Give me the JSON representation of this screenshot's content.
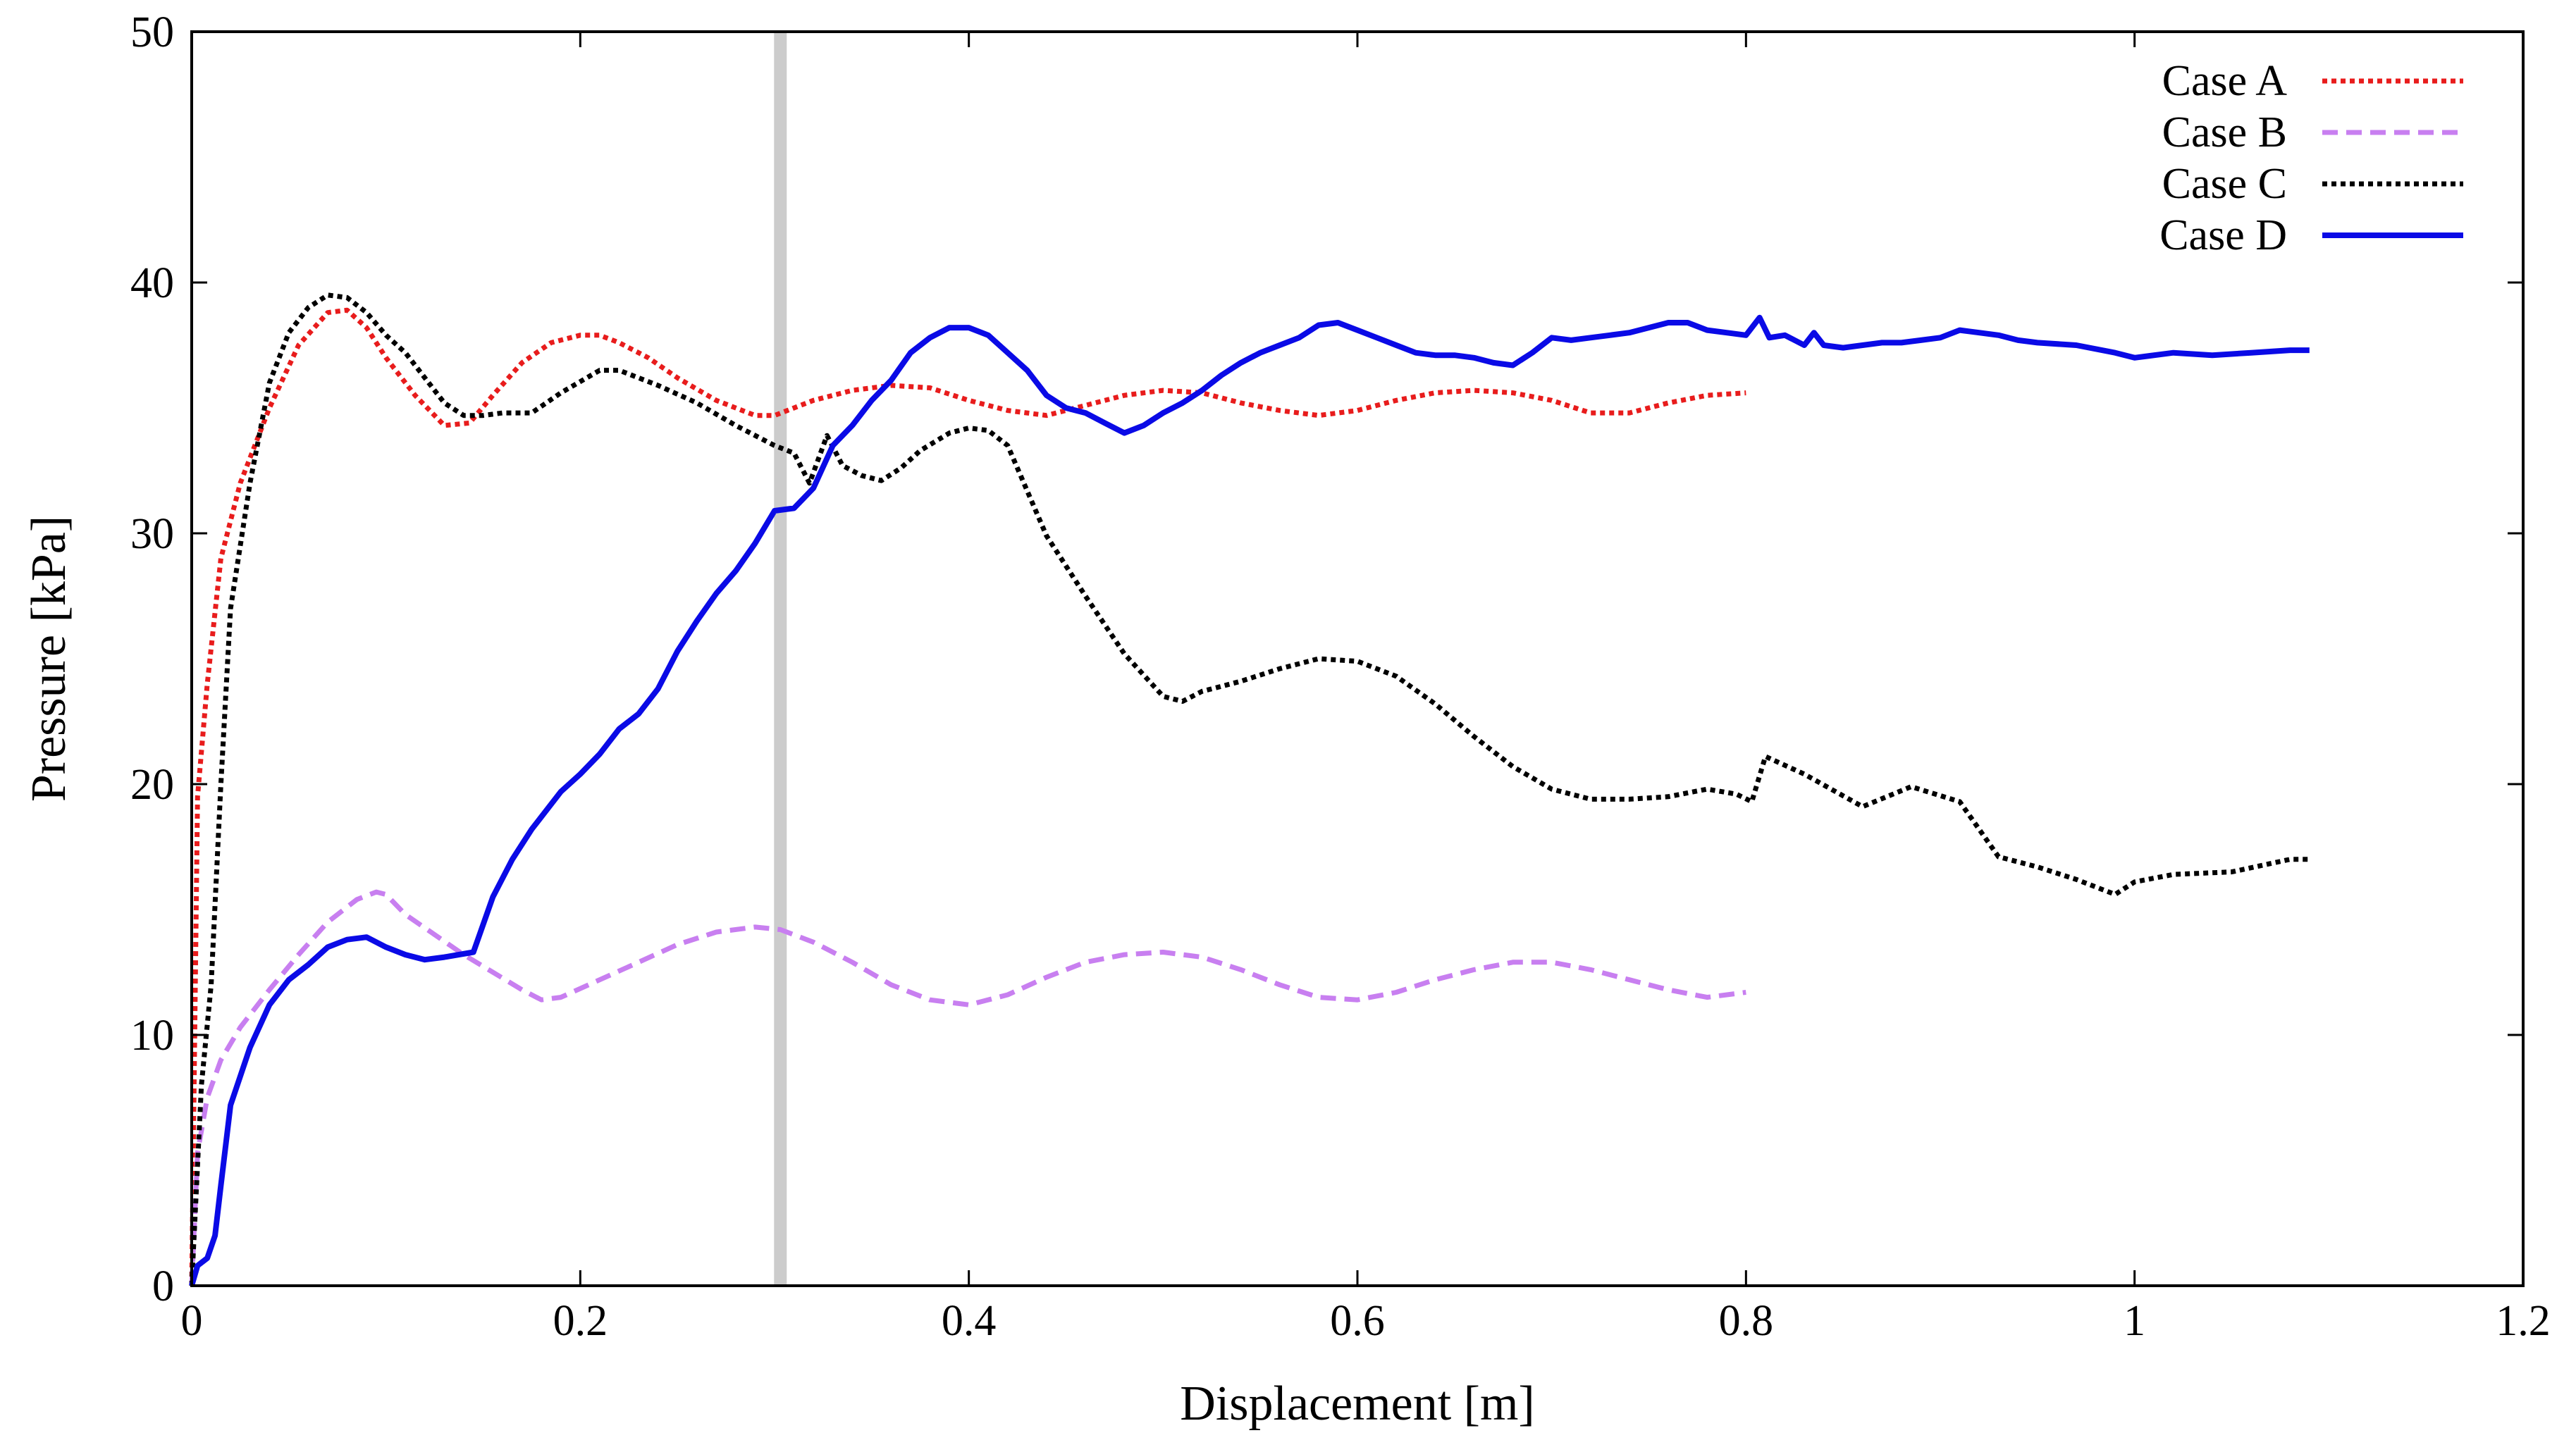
{
  "chart_data": {
    "type": "line",
    "title": "",
    "xlabel": "Displacement [m]",
    "ylabel": "Pressure [kPa]",
    "xlim": [
      0,
      1.2
    ],
    "ylim": [
      0,
      50
    ],
    "xticks": [
      0,
      0.2,
      0.4,
      0.6,
      0.8,
      1,
      1.2
    ],
    "xtick_labels": [
      "0",
      "0.2",
      "0.4",
      "0.6",
      "0.8",
      "1",
      "1.2"
    ],
    "yticks": [
      0,
      10,
      20,
      30,
      40,
      50
    ],
    "ytick_labels": [
      "0",
      "10",
      "20",
      "30",
      "40",
      "50"
    ],
    "grid": false,
    "legend_position": "top-right",
    "reference_line": {
      "x": 0.303,
      "color": "#cccccc"
    },
    "series": [
      {
        "name": "Case A",
        "color": "#e81c1c",
        "dash": "dotted",
        "x": [
          0,
          0.003,
          0.008,
          0.015,
          0.025,
          0.04,
          0.055,
          0.07,
          0.08,
          0.09,
          0.1,
          0.115,
          0.13,
          0.143,
          0.155,
          0.17,
          0.185,
          0.2,
          0.21,
          0.22,
          0.235,
          0.25,
          0.27,
          0.29,
          0.3,
          0.32,
          0.34,
          0.36,
          0.38,
          0.4,
          0.42,
          0.44,
          0.46,
          0.48,
          0.5,
          0.52,
          0.54,
          0.56,
          0.58,
          0.6,
          0.62,
          0.64,
          0.66,
          0.68,
          0.7,
          0.72,
          0.74,
          0.76,
          0.78,
          0.8
        ],
        "y": [
          0,
          19.5,
          24,
          29,
          32,
          35,
          37.5,
          38.8,
          38.9,
          38.2,
          37,
          35.5,
          34.3,
          34.4,
          35.5,
          36.8,
          37.6,
          37.9,
          37.9,
          37.6,
          37,
          36.2,
          35.3,
          34.7,
          34.7,
          35.3,
          35.7,
          35.9,
          35.8,
          35.3,
          34.9,
          34.7,
          35.1,
          35.5,
          35.7,
          35.6,
          35.2,
          34.9,
          34.7,
          34.9,
          35.3,
          35.6,
          35.7,
          35.6,
          35.3,
          34.8,
          34.8,
          35.2,
          35.5,
          35.6
        ]
      },
      {
        "name": "Case B",
        "color": "#c87ff0",
        "dash": "dashed",
        "x": [
          0,
          0.003,
          0.008,
          0.015,
          0.025,
          0.04,
          0.055,
          0.07,
          0.085,
          0.095,
          0.1,
          0.11,
          0.125,
          0.14,
          0.155,
          0.17,
          0.18,
          0.19,
          0.21,
          0.23,
          0.25,
          0.27,
          0.29,
          0.303,
          0.32,
          0.34,
          0.36,
          0.38,
          0.4,
          0.42,
          0.44,
          0.46,
          0.48,
          0.5,
          0.52,
          0.54,
          0.56,
          0.58,
          0.6,
          0.62,
          0.64,
          0.66,
          0.68,
          0.7,
          0.72,
          0.74,
          0.76,
          0.78,
          0.8
        ],
        "y": [
          0,
          5.3,
          7.5,
          9,
          10.3,
          11.8,
          13.2,
          14.5,
          15.4,
          15.7,
          15.6,
          14.8,
          14,
          13.2,
          12.5,
          11.8,
          11.4,
          11.5,
          12.2,
          12.9,
          13.6,
          14.1,
          14.3,
          14.2,
          13.7,
          12.9,
          12,
          11.4,
          11.2,
          11.6,
          12.3,
          12.9,
          13.2,
          13.3,
          13.1,
          12.6,
          12,
          11.5,
          11.4,
          11.7,
          12.2,
          12.6,
          12.9,
          12.9,
          12.6,
          12.2,
          11.8,
          11.5,
          11.7
        ]
      },
      {
        "name": "Case C",
        "color": "#000000",
        "dash": "dotted",
        "x": [
          0,
          0.005,
          0.01,
          0.015,
          0.02,
          0.03,
          0.04,
          0.05,
          0.06,
          0.07,
          0.08,
          0.09,
          0.1,
          0.11,
          0.12,
          0.13,
          0.14,
          0.15,
          0.16,
          0.175,
          0.19,
          0.21,
          0.22,
          0.24,
          0.26,
          0.28,
          0.3,
          0.31,
          0.318,
          0.327,
          0.335,
          0.345,
          0.355,
          0.365,
          0.375,
          0.39,
          0.4,
          0.41,
          0.42,
          0.44,
          0.46,
          0.48,
          0.5,
          0.51,
          0.52,
          0.54,
          0.56,
          0.58,
          0.6,
          0.62,
          0.64,
          0.66,
          0.68,
          0.7,
          0.72,
          0.74,
          0.76,
          0.78,
          0.795,
          0.803,
          0.81,
          0.83,
          0.86,
          0.885,
          0.91,
          0.93,
          0.95,
          0.97,
          0.99,
          1.0,
          1.02,
          1.05,
          1.08,
          1.09
        ],
        "y": [
          0,
          8,
          12,
          20,
          27,
          32,
          36,
          38,
          39,
          39.5,
          39.4,
          38.8,
          37.9,
          37.2,
          36.2,
          35.2,
          34.7,
          34.7,
          34.8,
          34.8,
          35.6,
          36.5,
          36.5,
          35.9,
          35.2,
          34.3,
          33.5,
          33.2,
          32,
          33.9,
          32.7,
          32.3,
          32.1,
          32.6,
          33.3,
          34,
          34.2,
          34.1,
          33.5,
          29.9,
          27.5,
          25.2,
          23.5,
          23.3,
          23.7,
          24.1,
          24.6,
          25,
          24.9,
          24.3,
          23.2,
          21.9,
          20.7,
          19.8,
          19.4,
          19.4,
          19.5,
          19.8,
          19.6,
          19.3,
          21.1,
          20.4,
          19.1,
          19.9,
          19.3,
          17.1,
          16.7,
          16.2,
          15.6,
          16.1,
          16.4,
          16.5,
          17,
          17
        ]
      },
      {
        "name": "Case D",
        "color": "#0a0ae6",
        "dash": "solid",
        "x": [
          0,
          0.003,
          0.008,
          0.012,
          0.015,
          0.02,
          0.03,
          0.04,
          0.05,
          0.06,
          0.07,
          0.08,
          0.09,
          0.1,
          0.11,
          0.12,
          0.13,
          0.145,
          0.155,
          0.165,
          0.175,
          0.19,
          0.2,
          0.21,
          0.22,
          0.23,
          0.24,
          0.25,
          0.26,
          0.27,
          0.28,
          0.29,
          0.3,
          0.31,
          0.32,
          0.33,
          0.34,
          0.35,
          0.36,
          0.37,
          0.38,
          0.39,
          0.4,
          0.41,
          0.42,
          0.43,
          0.44,
          0.45,
          0.46,
          0.47,
          0.48,
          0.49,
          0.5,
          0.51,
          0.52,
          0.53,
          0.54,
          0.55,
          0.56,
          0.57,
          0.58,
          0.59,
          0.6,
          0.61,
          0.62,
          0.63,
          0.64,
          0.65,
          0.66,
          0.67,
          0.68,
          0.69,
          0.7,
          0.71,
          0.72,
          0.73,
          0.74,
          0.75,
          0.76,
          0.77,
          0.78,
          0.79,
          0.8,
          0.807,
          0.812,
          0.82,
          0.83,
          0.835,
          0.84,
          0.85,
          0.86,
          0.87,
          0.88,
          0.89,
          0.9,
          0.91,
          0.92,
          0.93,
          0.94,
          0.95,
          0.97,
          0.99,
          1.0,
          1.02,
          1.04,
          1.06,
          1.08,
          1.09
        ],
        "y": [
          0,
          0.8,
          1.1,
          2,
          4,
          7.2,
          9.5,
          11.2,
          12.2,
          12.8,
          13.5,
          13.8,
          13.9,
          13.5,
          13.2,
          13,
          13.1,
          13.3,
          15.5,
          17,
          18.2,
          19.7,
          20.4,
          21.2,
          22.2,
          22.8,
          23.8,
          25.3,
          26.5,
          27.6,
          28.5,
          29.6,
          30.9,
          31,
          31.8,
          33.5,
          34.3,
          35.3,
          36.1,
          37.2,
          37.8,
          38.2,
          38.2,
          37.9,
          37.2,
          36.5,
          35.5,
          35,
          34.8,
          34.4,
          34,
          34.3,
          34.8,
          35.2,
          35.7,
          36.3,
          36.8,
          37.2,
          37.5,
          37.8,
          38.3,
          38.4,
          38.1,
          37.8,
          37.5,
          37.2,
          37.1,
          37.1,
          37,
          36.8,
          36.7,
          37.2,
          37.8,
          37.7,
          37.8,
          37.9,
          38,
          38.2,
          38.4,
          38.4,
          38.1,
          38,
          37.9,
          38.6,
          37.8,
          37.9,
          37.5,
          38,
          37.5,
          37.4,
          37.5,
          37.6,
          37.6,
          37.7,
          37.8,
          38.1,
          38,
          37.9,
          37.7,
          37.6,
          37.5,
          37.2,
          37,
          37.2,
          37.1,
          37.2,
          37.3,
          37.3
        ]
      }
    ]
  }
}
